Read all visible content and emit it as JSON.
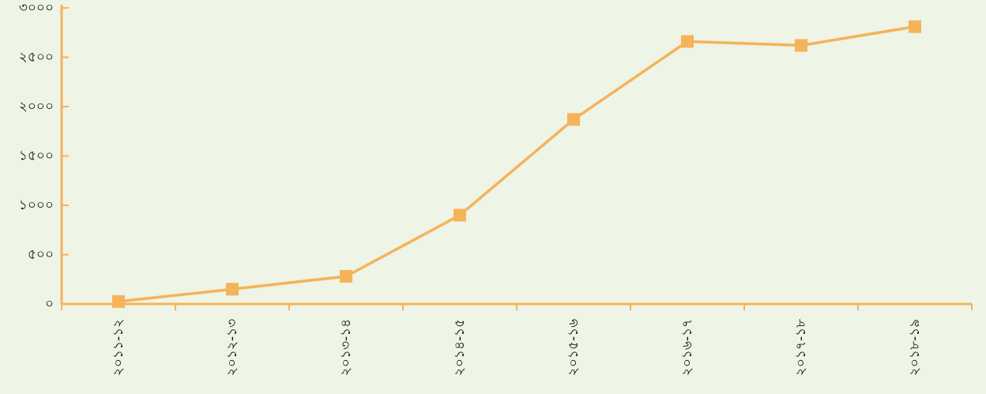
{
  "chart_data": {
    "type": "line",
    "categories": [
      "২০১১-১২",
      "২০১২-১৩",
      "২০১৩-১৪",
      "২০১৪-১৫",
      "২০১৫-১৬",
      "২০১৬-১৭",
      "২০১৭-১৮",
      "২০১৮-১৯"
    ],
    "series": [
      {
        "color": "#f5b35a",
        "values": [
          25,
          150,
          280,
          900,
          1870,
          2660,
          2620,
          2810
        ]
      }
    ],
    "ylim": [
      0,
      3000
    ],
    "yticks": [
      {
        "value": 0,
        "label": "০"
      },
      {
        "value": 500,
        "label": "৫০০"
      },
      {
        "value": 1000,
        "label": "১০০০"
      },
      {
        "value": 1500,
        "label": "১৫০০"
      },
      {
        "value": 2000,
        "label": "২০০০"
      },
      {
        "value": 2500,
        "label": "২৫০০"
      },
      {
        "value": 3000,
        "label": "৩০০০"
      }
    ],
    "grid": false
  }
}
